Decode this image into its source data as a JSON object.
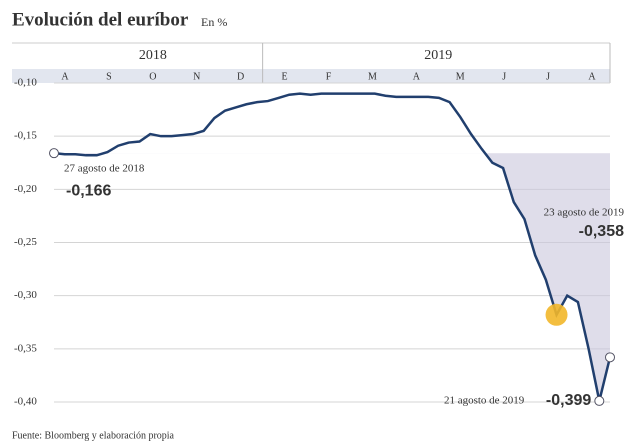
{
  "chart_data": {
    "type": "line",
    "title": "Evolución del euríbor",
    "subtitle": "En %",
    "source": "Fuente: Bloomberg y elaboración propia",
    "periods": [
      {
        "year": "2018",
        "months": [
          "A",
          "S",
          "O",
          "N",
          "D"
        ]
      },
      {
        "year": "2019",
        "months": [
          "E",
          "F",
          "M",
          "A",
          "M",
          "J",
          "J",
          "A"
        ]
      }
    ],
    "ylim": [
      -0.1,
      -0.4
    ],
    "yticks": [
      {
        "value": -0.1,
        "label": "-0,10"
      },
      {
        "value": -0.15,
        "label": "-0,15"
      },
      {
        "value": -0.2,
        "label": "-0,20"
      },
      {
        "value": -0.25,
        "label": "-0,25"
      },
      {
        "value": -0.3,
        "label": "-0,30"
      },
      {
        "value": -0.35,
        "label": "-0,35"
      },
      {
        "value": -0.4,
        "label": "-0,40"
      }
    ],
    "grid": true,
    "series": [
      {
        "color": "#213f6e",
        "values": [
          -0.166,
          -0.167,
          -0.167,
          -0.168,
          -0.168,
          -0.165,
          -0.159,
          -0.156,
          -0.155,
          -0.148,
          -0.15,
          -0.15,
          -0.149,
          -0.148,
          -0.145,
          -0.133,
          -0.126,
          -0.123,
          -0.12,
          -0.118,
          -0.117,
          -0.114,
          -0.111,
          -0.11,
          -0.111,
          -0.11,
          -0.11,
          -0.11,
          -0.11,
          -0.11,
          -0.11,
          -0.112,
          -0.113,
          -0.113,
          -0.113,
          -0.113,
          -0.114,
          -0.118,
          -0.132,
          -0.148,
          -0.162,
          -0.175,
          -0.18,
          -0.212,
          -0.228,
          -0.262,
          -0.285,
          -0.318,
          -0.3,
          -0.306,
          -0.35,
          -0.399,
          -0.358
        ],
        "value_labels": [
          "-0,166",
          null,
          null,
          null,
          null,
          null,
          null,
          null,
          null,
          null,
          null,
          null,
          null,
          null,
          null,
          null,
          null,
          null,
          null,
          null,
          null,
          null,
          null,
          null,
          null,
          null,
          null,
          null,
          null,
          null,
          null,
          null,
          null,
          null,
          null,
          null,
          null,
          null,
          null,
          null,
          null,
          null,
          null,
          null,
          null,
          null,
          null,
          null,
          null,
          null,
          null,
          "-0,399",
          "-0,358"
        ],
        "point_labels": [
          "27 agosto de 2018",
          null,
          null,
          null,
          null,
          null,
          null,
          null,
          null,
          null,
          null,
          null,
          null,
          null,
          null,
          null,
          null,
          null,
          null,
          null,
          null,
          null,
          null,
          null,
          null,
          null,
          null,
          null,
          null,
          null,
          null,
          null,
          null,
          null,
          null,
          null,
          null,
          null,
          null,
          null,
          null,
          null,
          null,
          null,
          null,
          null,
          null,
          null,
          null,
          null,
          null,
          "21 agosto de 2019",
          "23 agosto de 2019"
        ],
        "marker_colors": [
          "#ffffff",
          null,
          null,
          null,
          null,
          null,
          null,
          null,
          null,
          null,
          null,
          null,
          null,
          null,
          null,
          null,
          null,
          null,
          null,
          null,
          null,
          null,
          null,
          null,
          null,
          null,
          null,
          null,
          null,
          null,
          null,
          null,
          null,
          null,
          null,
          null,
          null,
          null,
          null,
          null,
          null,
          null,
          null,
          null,
          null,
          null,
          null,
          "#f2b72a",
          null,
          null,
          null,
          "#ffffff",
          "#ffffff"
        ]
      }
    ]
  }
}
